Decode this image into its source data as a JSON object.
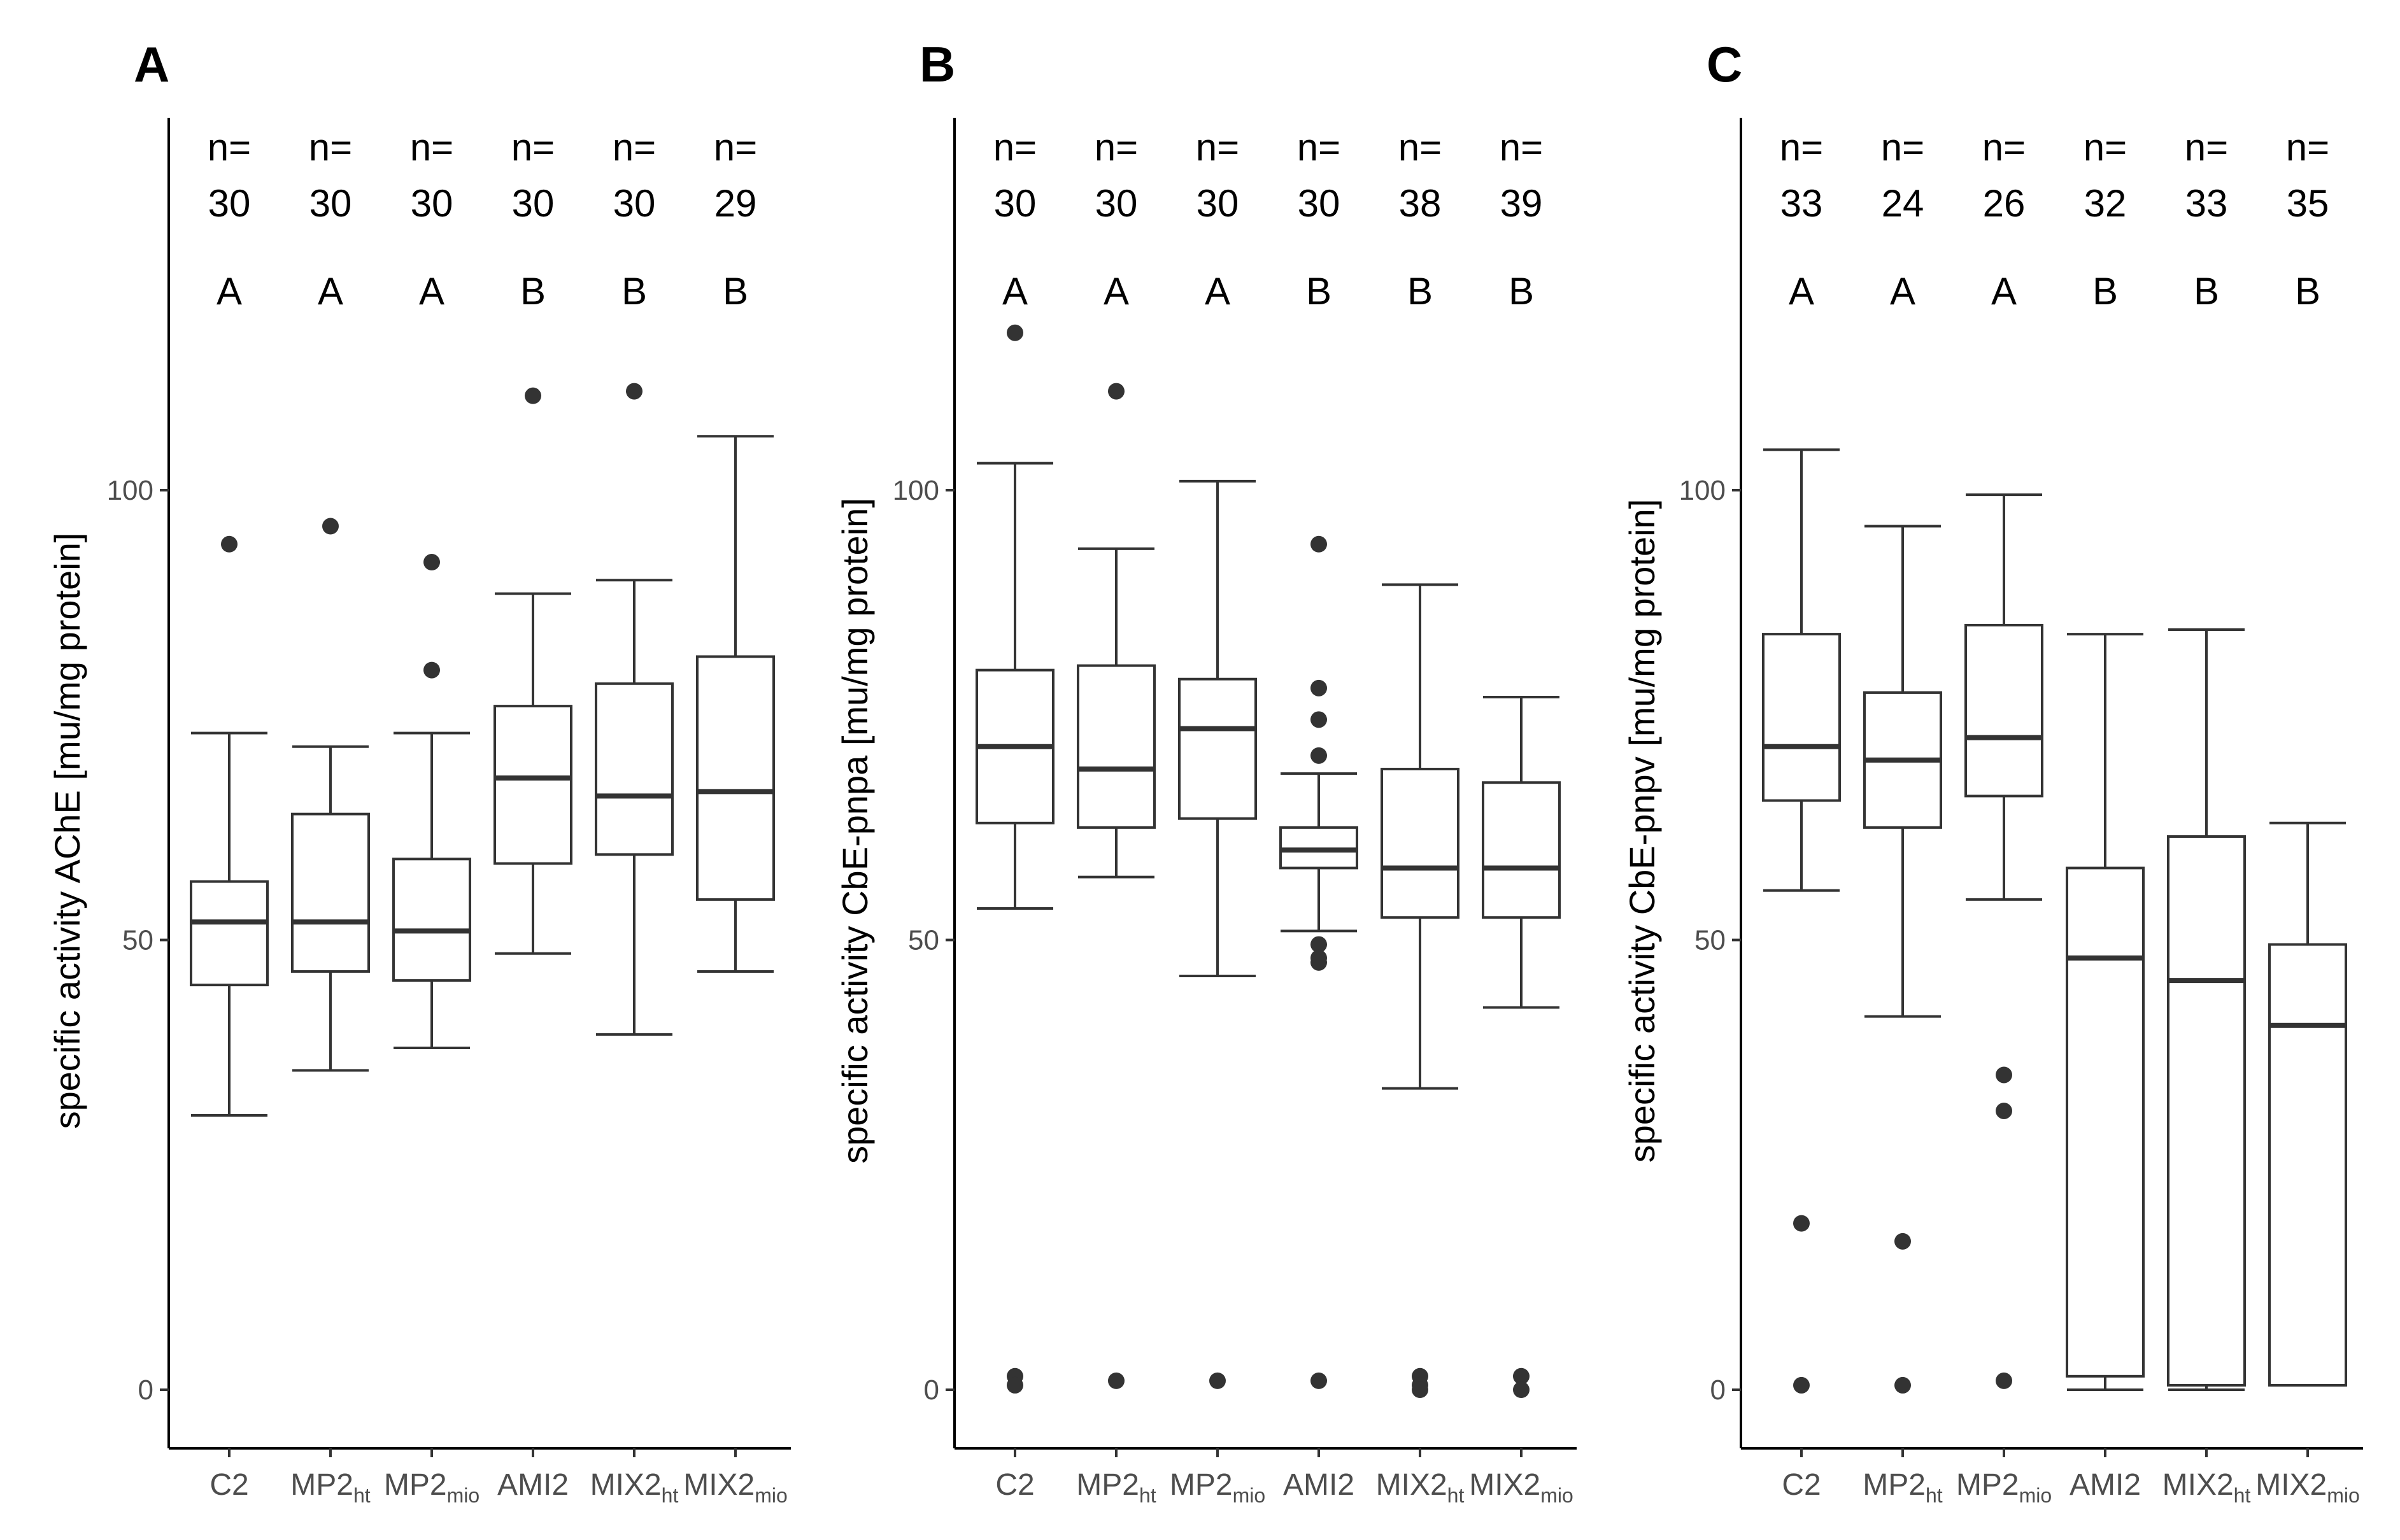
{
  "chart_data": [
    {
      "type": "box",
      "panel": "A",
      "ylabel": "specific activity AChE [mu/mg protein]",
      "ylim": [
        -6,
        141
      ],
      "yticks": [
        0,
        50,
        100
      ],
      "categories": [
        {
          "base": "C2",
          "sub": ""
        },
        {
          "base": "MP2",
          "sub": "ht"
        },
        {
          "base": "MP2",
          "sub": "mio"
        },
        {
          "base": "AMI2",
          "sub": ""
        },
        {
          "base": "MIX2",
          "sub": "ht"
        },
        {
          "base": "MIX2",
          "sub": "mio"
        }
      ],
      "n_prefix": "n=",
      "n": [
        "30",
        "30",
        "30",
        "30",
        "30",
        "29"
      ],
      "groups": [
        "A",
        "A",
        "A",
        "B",
        "B",
        "B"
      ],
      "boxes": [
        {
          "q1": 45,
          "median": 52,
          "q3": 56.5,
          "whisker_low": 30.5,
          "whisker_high": 73,
          "outliers": [
            94
          ]
        },
        {
          "q1": 46.5,
          "median": 52,
          "q3": 64,
          "whisker_low": 35.5,
          "whisker_high": 71.5,
          "outliers": [
            96
          ]
        },
        {
          "q1": 45.5,
          "median": 51,
          "q3": 59,
          "whisker_low": 38,
          "whisker_high": 73,
          "outliers": [
            80,
            92
          ]
        },
        {
          "q1": 58.5,
          "median": 68,
          "q3": 76,
          "whisker_low": 48.5,
          "whisker_high": 88.5,
          "outliers": [
            110.5
          ]
        },
        {
          "q1": 59.5,
          "median": 66,
          "q3": 78.5,
          "whisker_low": 39.5,
          "whisker_high": 90,
          "outliers": [
            111
          ]
        },
        {
          "q1": 54.5,
          "median": 66.5,
          "q3": 81.5,
          "whisker_low": 46.5,
          "whisker_high": 106,
          "outliers": []
        }
      ]
    },
    {
      "type": "box",
      "panel": "B",
      "ylabel": "specific activity CbE-pnpa [mu/mg protein]",
      "ylim": [
        -6,
        141
      ],
      "yticks": [
        0,
        50,
        100
      ],
      "categories": [
        {
          "base": "C2",
          "sub": ""
        },
        {
          "base": "MP2",
          "sub": "ht"
        },
        {
          "base": "MP2",
          "sub": "mio"
        },
        {
          "base": "AMI2",
          "sub": ""
        },
        {
          "base": "MIX2",
          "sub": "ht"
        },
        {
          "base": "MIX2",
          "sub": "mio"
        }
      ],
      "n_prefix": "n=",
      "n": [
        "30",
        "30",
        "30",
        "30",
        "38",
        "39"
      ],
      "groups": [
        "A",
        "A",
        "A",
        "B",
        "B",
        "B"
      ],
      "boxes": [
        {
          "q1": 63,
          "median": 71.5,
          "q3": 80,
          "whisker_low": 53.5,
          "whisker_high": 103,
          "outliers": [
            117.5,
            1.5,
            0.5
          ]
        },
        {
          "q1": 62.5,
          "median": 69,
          "q3": 80.5,
          "whisker_low": 57,
          "whisker_high": 93.5,
          "outliers": [
            111,
            1
          ]
        },
        {
          "q1": 63.5,
          "median": 73.5,
          "q3": 79,
          "whisker_low": 46,
          "whisker_high": 101,
          "outliers": [
            1
          ]
        },
        {
          "q1": 58,
          "median": 60,
          "q3": 62.5,
          "whisker_low": 51,
          "whisker_high": 68.5,
          "outliers": [
            94,
            78,
            74.5,
            70.5,
            49.5,
            48,
            47.5,
            1
          ]
        },
        {
          "q1": 52.5,
          "median": 58,
          "q3": 69,
          "whisker_low": 33.5,
          "whisker_high": 89.5,
          "outliers": [
            1.5,
            0.5,
            0
          ]
        },
        {
          "q1": 52.5,
          "median": 58,
          "q3": 67.5,
          "whisker_low": 42.5,
          "whisker_high": 77,
          "outliers": [
            1.5,
            0
          ]
        }
      ]
    },
    {
      "type": "box",
      "panel": "C",
      "ylabel": "specific activity CbE-pnpv [mu/mg protein]",
      "ylim": [
        -6,
        141
      ],
      "yticks": [
        0,
        50,
        100
      ],
      "categories": [
        {
          "base": "C2",
          "sub": ""
        },
        {
          "base": "MP2",
          "sub": "ht"
        },
        {
          "base": "MP2",
          "sub": "mio"
        },
        {
          "base": "AMI2",
          "sub": ""
        },
        {
          "base": "MIX2",
          "sub": "ht"
        },
        {
          "base": "MIX2",
          "sub": "mio"
        }
      ],
      "n_prefix": "n=",
      "n": [
        "33",
        "24",
        "26",
        "32",
        "33",
        "35"
      ],
      "groups": [
        "A",
        "A",
        "A",
        "B",
        "B",
        "B"
      ],
      "boxes": [
        {
          "q1": 65.5,
          "median": 71.5,
          "q3": 84,
          "whisker_low": 55.5,
          "whisker_high": 104.5,
          "outliers": [
            18.5,
            0.5
          ]
        },
        {
          "q1": 62.5,
          "median": 70,
          "q3": 77.5,
          "whisker_low": 41.5,
          "whisker_high": 96,
          "outliers": [
            16.5,
            0.5
          ]
        },
        {
          "q1": 66,
          "median": 72.5,
          "q3": 85,
          "whisker_low": 54.5,
          "whisker_high": 99.5,
          "outliers": [
            35,
            31,
            1
          ]
        },
        {
          "q1": 1.5,
          "median": 48,
          "q3": 58,
          "whisker_low": 0,
          "whisker_high": 84,
          "outliers": []
        },
        {
          "q1": 0.5,
          "median": 45.5,
          "q3": 61.5,
          "whisker_low": 0,
          "whisker_high": 84.5,
          "outliers": []
        },
        {
          "q1": 0.5,
          "median": 40.5,
          "q3": 49.5,
          "whisker_low": 0.5,
          "whisker_high": 63,
          "outliers": []
        }
      ]
    }
  ]
}
